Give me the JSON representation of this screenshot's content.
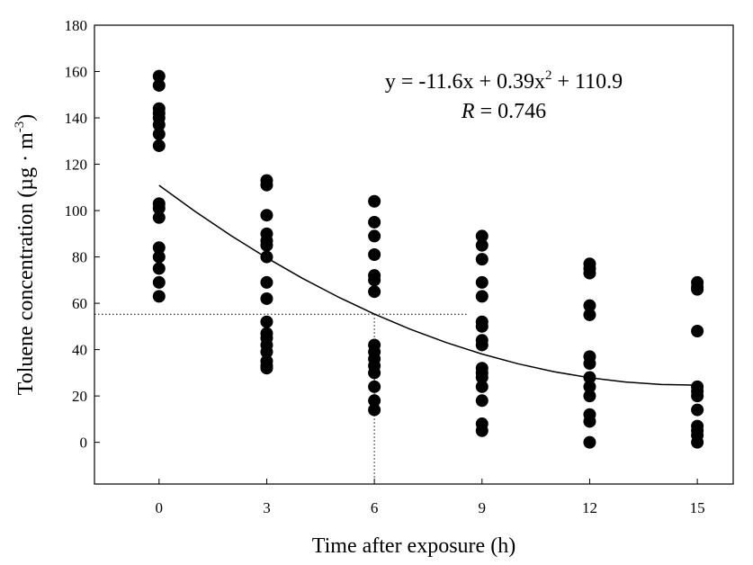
{
  "chart_data": {
    "type": "scatter",
    "xlabel": "Time after exposure (h)",
    "ylabel": [
      "Toluene concentration (µg · m",
      "-3",
      ")"
    ],
    "equation": [
      "y = -11.6x + 0.39x",
      "2",
      " + 110.9"
    ],
    "r_label": [
      "R",
      " = 0.746"
    ],
    "color": "#000000",
    "xlim": [
      -1.8,
      16
    ],
    "ylim": [
      -18,
      180
    ],
    "xticks": [
      0,
      3,
      6,
      9,
      12,
      15
    ],
    "yticks": [
      0,
      20,
      40,
      60,
      80,
      100,
      120,
      140,
      160,
      180
    ],
    "x": [
      0,
      0,
      0,
      0,
      0,
      0,
      0,
      0,
      0,
      0,
      0,
      0,
      0,
      0,
      0,
      0,
      3,
      3,
      3,
      3,
      3,
      3,
      3,
      3,
      3,
      3,
      3,
      3,
      3,
      3,
      3,
      3,
      3,
      6,
      6,
      6,
      6,
      6,
      6,
      6,
      6,
      6,
      6,
      6,
      6,
      6,
      6,
      6,
      9,
      9,
      9,
      9,
      9,
      9,
      9,
      9,
      9,
      9,
      9,
      9,
      9,
      9,
      9,
      9,
      12,
      12,
      12,
      12,
      12,
      12,
      12,
      12,
      12,
      12,
      12,
      12,
      12,
      15,
      15,
      15,
      15,
      15,
      15,
      15,
      15,
      15,
      15,
      15,
      15
    ],
    "values": [
      158,
      154,
      144,
      142,
      140,
      137,
      133,
      128,
      103,
      101,
      97,
      84,
      80,
      75,
      69,
      63,
      113,
      111,
      98,
      90,
      87,
      85,
      80,
      69,
      62,
      52,
      47,
      45,
      42,
      39,
      35,
      33,
      32,
      104,
      95,
      89,
      81,
      72,
      70,
      65,
      42,
      39,
      36,
      33,
      30,
      24,
      18,
      14,
      89,
      85,
      79,
      69,
      63,
      52,
      50,
      44,
      42,
      32,
      30,
      28,
      24,
      18,
      8,
      5,
      77,
      75,
      73,
      59,
      55,
      37,
      34,
      28,
      24,
      20,
      12,
      9,
      0,
      69,
      67,
      66,
      48,
      24,
      22,
      20,
      14,
      7,
      5,
      3,
      0
    ],
    "fit": {
      "x": [
        0,
        1,
        2,
        3,
        4,
        5,
        6,
        7,
        8,
        9,
        10,
        11,
        12,
        13,
        14,
        15
      ],
      "values": [
        110.9,
        99.69,
        89.26,
        79.61,
        70.74,
        62.65,
        55.34,
        48.81,
        43.06,
        38.09,
        33.9,
        30.49,
        27.86,
        26.01,
        24.94,
        24.65
      ]
    },
    "guide": {
      "x": 6,
      "y": 55.3,
      "x_end": 8.6
    }
  }
}
